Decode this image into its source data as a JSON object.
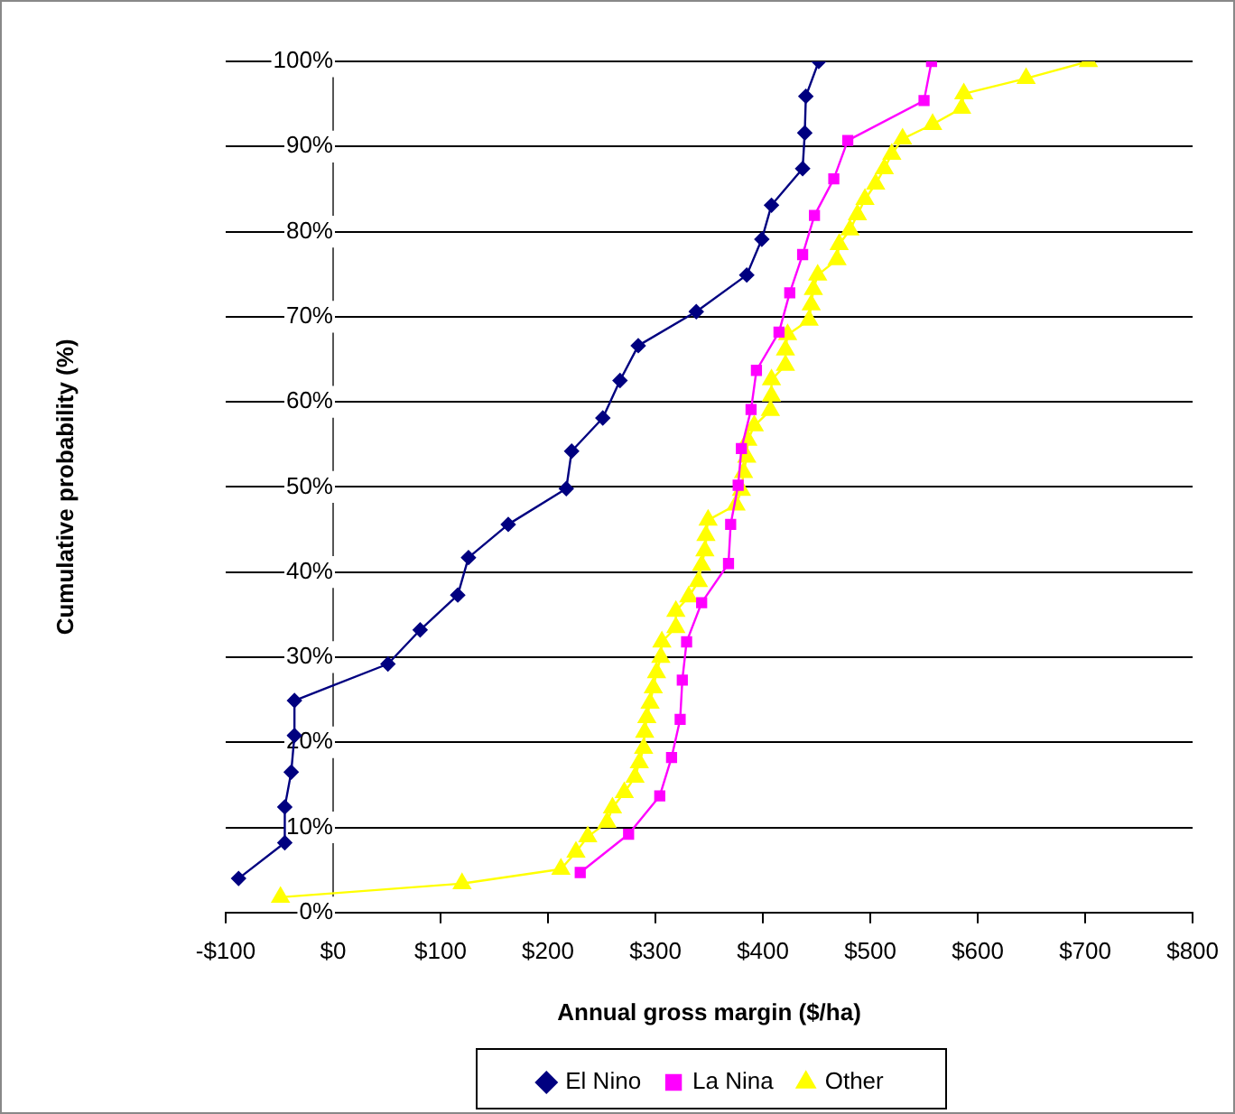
{
  "chart_data": {
    "type": "line",
    "xlabel": "Annual gross margin ($/ha)",
    "ylabel": "Cumulative probability (%)",
    "xlim": [
      -100,
      800
    ],
    "xticks": [
      {
        "value": -100,
        "label": "-$100"
      },
      {
        "value": 0,
        "label": "$0"
      },
      {
        "value": 100,
        "label": "$100"
      },
      {
        "value": 200,
        "label": "$200"
      },
      {
        "value": 300,
        "label": "$300"
      },
      {
        "value": 400,
        "label": "$400"
      },
      {
        "value": 500,
        "label": "$500"
      },
      {
        "value": 600,
        "label": "$600"
      },
      {
        "value": 700,
        "label": "$700"
      },
      {
        "value": 800,
        "label": "$800"
      }
    ],
    "ylim": [
      0,
      100
    ],
    "yticks": [
      {
        "value": 0,
        "label": "0%"
      },
      {
        "value": 10,
        "label": "10%"
      },
      {
        "value": 20,
        "label": "20%"
      },
      {
        "value": 30,
        "label": "30%"
      },
      {
        "value": 40,
        "label": "40%"
      },
      {
        "value": 50,
        "label": "50%"
      },
      {
        "value": 60,
        "label": "60%"
      },
      {
        "value": 70,
        "label": "70%"
      },
      {
        "value": 80,
        "label": "80%"
      },
      {
        "value": 90,
        "label": "90%"
      },
      {
        "value": 100,
        "label": "100%"
      }
    ],
    "grid": "y",
    "legend": "bottom",
    "line_style": "solid",
    "series": [
      {
        "name": "El Nino",
        "color": "#000080",
        "marker": "diamond",
        "x": [
          -88,
          -45,
          -45,
          -39,
          -36,
          -36,
          51,
          81,
          116,
          126,
          163,
          217,
          222,
          251,
          267,
          284,
          338,
          385,
          399,
          408,
          437,
          439,
          440,
          452
        ],
        "values": [
          4.0,
          8.2,
          12.4,
          16.5,
          20.8,
          24.9,
          29.2,
          33.2,
          37.3,
          41.7,
          45.6,
          49.8,
          54.2,
          58.1,
          62.5,
          66.6,
          70.6,
          74.9,
          79.1,
          83.1,
          87.4,
          91.6,
          95.9,
          100
        ]
      },
      {
        "name": "La Nina",
        "color": "#ff00ff",
        "marker": "square",
        "x": [
          230,
          275,
          304,
          315,
          323,
          325,
          329,
          343,
          368,
          370,
          377,
          380,
          389,
          394,
          415,
          425,
          437,
          448,
          466,
          479,
          550,
          557
        ],
        "values": [
          4.7,
          9.2,
          13.7,
          18.2,
          22.7,
          27.3,
          31.8,
          36.4,
          41.0,
          45.6,
          50.2,
          54.5,
          59.1,
          63.7,
          68.2,
          72.8,
          77.3,
          81.9,
          86.2,
          90.7,
          95.4,
          100
        ]
      },
      {
        "name": "Other",
        "color": "#ffff00",
        "marker": "triangle",
        "x": [
          -49,
          120,
          212,
          226,
          237,
          255,
          260,
          271,
          281,
          285,
          289,
          290,
          292,
          295,
          298,
          301,
          305,
          306,
          319,
          319,
          331,
          340,
          343,
          346,
          347,
          349,
          375,
          380,
          382,
          385,
          386,
          392,
          407,
          408,
          408,
          421,
          421,
          423,
          443,
          445,
          447,
          451,
          469,
          471,
          481,
          488,
          495,
          505,
          513,
          520,
          530,
          558,
          585,
          587,
          645,
          703
        ],
        "values": [
          1.8,
          3.4,
          5.1,
          7.1,
          8.9,
          10.6,
          12.3,
          14.1,
          15.9,
          17.6,
          19.3,
          21.2,
          22.9,
          24.6,
          26.4,
          28.2,
          30.0,
          31.8,
          33.5,
          35.4,
          37.1,
          38.9,
          40.8,
          42.5,
          44.3,
          46.1,
          47.9,
          49.6,
          51.7,
          53.5,
          55.5,
          57.2,
          59.0,
          60.7,
          62.6,
          64.3,
          66.1,
          67.9,
          69.6,
          71.4,
          73.2,
          74.9,
          76.7,
          78.5,
          80.2,
          82.0,
          83.8,
          85.6,
          87.4,
          89.1,
          90.9,
          92.6,
          94.5,
          96.2,
          98.0,
          100
        ]
      }
    ]
  }
}
